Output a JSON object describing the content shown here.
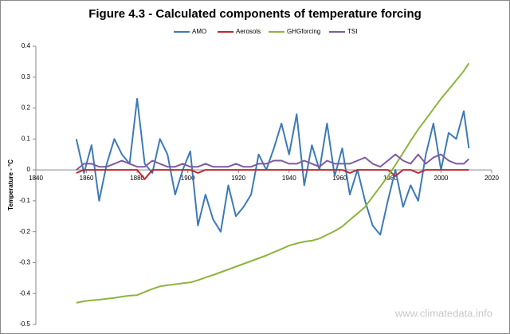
{
  "chart_data": {
    "type": "line",
    "title": "Figure 4.3 - Calculated components of temperature forcing",
    "y_label": "Temperature - °C",
    "annotation": "www.climatedata.info",
    "legend": "top",
    "x": [
      1856,
      1859,
      1862,
      1865,
      1868,
      1871,
      1874,
      1877,
      1880,
      1883,
      1886,
      1889,
      1892,
      1895,
      1898,
      1901,
      1904,
      1907,
      1910,
      1913,
      1916,
      1919,
      1922,
      1925,
      1928,
      1931,
      1934,
      1937,
      1940,
      1943,
      1946,
      1949,
      1952,
      1955,
      1958,
      1961,
      1964,
      1967,
      1970,
      1973,
      1976,
      1979,
      1982,
      1985,
      1988,
      1991,
      1994,
      1997,
      2000,
      2003,
      2006,
      2009,
      2011
    ],
    "series": [
      {
        "name": "AMO",
        "color": "#3d7ab8",
        "values": [
          0.1,
          -0.01,
          0.08,
          -0.1,
          0.02,
          0.1,
          0.05,
          0.02,
          0.23,
          0.02,
          -0.01,
          0.1,
          0.05,
          -0.08,
          0.0,
          0.06,
          -0.18,
          -0.08,
          -0.16,
          -0.2,
          -0.05,
          -0.15,
          -0.12,
          -0.08,
          0.05,
          0.0,
          0.07,
          0.15,
          0.05,
          0.18,
          -0.05,
          0.08,
          0.0,
          0.15,
          -0.02,
          0.07,
          -0.08,
          0.0,
          -0.1,
          -0.18,
          -0.21,
          -0.1,
          0.0,
          -0.12,
          -0.05,
          -0.1,
          0.05,
          0.15,
          0.0,
          0.12,
          0.1,
          0.19,
          0.07
        ]
      },
      {
        "name": "Aerosols",
        "color": "#c0272d",
        "values": [
          -0.01,
          0,
          0,
          0,
          0,
          0,
          0,
          0,
          0,
          -0.03,
          0,
          0,
          0,
          0,
          0,
          0,
          -0.01,
          0,
          0,
          0,
          0,
          0,
          0,
          0,
          0,
          0,
          0,
          0,
          0,
          0,
          0,
          0,
          0,
          0,
          0,
          0,
          -0.01,
          0,
          0,
          0,
          0,
          0,
          -0.02,
          0,
          0,
          -0.01,
          0,
          0,
          0,
          0,
          0,
          0,
          0
        ]
      },
      {
        "name": "GHGforcing",
        "color": "#8db43e",
        "values": [
          -0.43,
          -0.425,
          -0.422,
          -0.42,
          -0.417,
          -0.414,
          -0.41,
          -0.407,
          -0.405,
          -0.395,
          -0.385,
          -0.377,
          -0.373,
          -0.37,
          -0.367,
          -0.364,
          -0.357,
          -0.348,
          -0.34,
          -0.331,
          -0.322,
          -0.313,
          -0.304,
          -0.295,
          -0.286,
          -0.277,
          -0.266,
          -0.256,
          -0.245,
          -0.238,
          -0.232,
          -0.229,
          -0.222,
          -0.21,
          -0.198,
          -0.183,
          -0.162,
          -0.141,
          -0.12,
          -0.087,
          -0.054,
          -0.021,
          0.016,
          0.055,
          0.094,
          0.131,
          0.164,
          0.197,
          0.23,
          0.26,
          0.29,
          0.32,
          0.345
        ]
      },
      {
        "name": "TSI",
        "color": "#7e5aa0",
        "values": [
          0.0,
          0.02,
          0.02,
          0.01,
          0.01,
          0.02,
          0.03,
          0.02,
          0.01,
          0.01,
          0.03,
          0.02,
          0.01,
          0.01,
          0.02,
          0.01,
          0.01,
          0.02,
          0.01,
          0.01,
          0.01,
          0.02,
          0.01,
          0.01,
          0.02,
          0.02,
          0.03,
          0.03,
          0.02,
          0.02,
          0.03,
          0.02,
          0.01,
          0.03,
          0.02,
          0.02,
          0.02,
          0.03,
          0.04,
          0.02,
          0.01,
          0.03,
          0.05,
          0.03,
          0.02,
          0.05,
          0.02,
          0.04,
          0.05,
          0.03,
          0.02,
          0.02,
          0.035
        ]
      }
    ],
    "xlim": [
      1840,
      2020
    ],
    "xticks": [
      1840,
      1860,
      1880,
      1900,
      1920,
      1940,
      1960,
      1980,
      2000,
      2020
    ],
    "ylim": [
      -0.5,
      0.4
    ],
    "yticks": [
      0.4,
      0.3,
      0.2,
      0.1,
      0,
      -0.1,
      -0.2,
      -0.3,
      -0.4,
      -0.5
    ]
  }
}
